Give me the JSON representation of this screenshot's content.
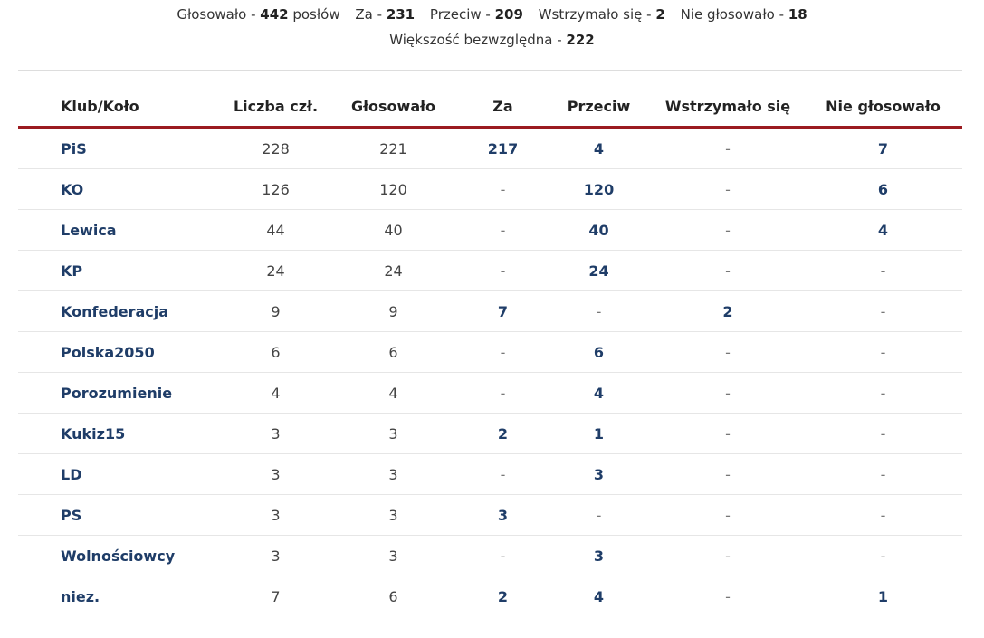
{
  "summary": {
    "voted_label": "Głosowało -",
    "voted_value": "442",
    "voted_suffix": "posłów",
    "for_label": "Za -",
    "for_value": "231",
    "against_label": "Przeciw -",
    "against_value": "209",
    "abstained_label": "Wstrzymało się -",
    "abstained_value": "2",
    "notvoted_label": "Nie głosowało -",
    "notvoted_value": "18",
    "majority_label": "Większość bezwzględna -",
    "majority_value": "222"
  },
  "table": {
    "headers": [
      "Klub/Koło",
      "Liczba czł.",
      "Głosowało",
      "Za",
      "Przeciw",
      "Wstrzymało się",
      "Nie głosowało"
    ],
    "rows": [
      [
        "PiS",
        "228",
        "221",
        "217",
        "4",
        "-",
        "7"
      ],
      [
        "KO",
        "126",
        "120",
        "-",
        "120",
        "-",
        "6"
      ],
      [
        "Lewica",
        "44",
        "40",
        "-",
        "40",
        "-",
        "4"
      ],
      [
        "KP",
        "24",
        "24",
        "-",
        "24",
        "-",
        "-"
      ],
      [
        "Konfederacja",
        "9",
        "9",
        "7",
        "-",
        "2",
        "-"
      ],
      [
        "Polska2050",
        "6",
        "6",
        "-",
        "6",
        "-",
        "-"
      ],
      [
        "Porozumienie",
        "4",
        "4",
        "-",
        "4",
        "-",
        "-"
      ],
      [
        "Kukiz15",
        "3",
        "3",
        "2",
        "1",
        "-",
        "-"
      ],
      [
        "LD",
        "3",
        "3",
        "-",
        "3",
        "-",
        "-"
      ],
      [
        "PS",
        "3",
        "3",
        "3",
        "-",
        "-",
        "-"
      ],
      [
        "Wolnościowcy",
        "3",
        "3",
        "-",
        "3",
        "-",
        "-"
      ],
      [
        "niez.",
        "7",
        "6",
        "2",
        "4",
        "-",
        "1"
      ]
    ]
  },
  "colors": {
    "club_text": "#1f3d68",
    "header_rule": "#9b1b20"
  }
}
